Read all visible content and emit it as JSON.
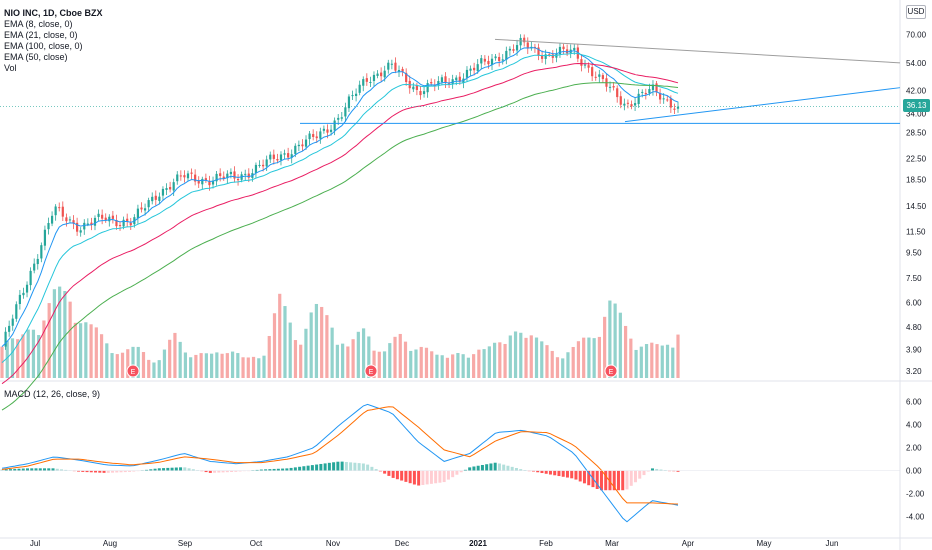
{
  "header": {
    "symbol_line": "NIO INC, 1D, Cboe BZX",
    "currency": "USD"
  },
  "price_pane": {
    "legend": [
      "EMA (8, close, 0)",
      "EMA (21, close, 0)",
      "EMA (100, close, 0)",
      "EMA (50, close)",
      "Vol"
    ],
    "last_price_label": "36.13",
    "y_ticks": [
      "70.00",
      "54.00",
      "42.00",
      "34.00",
      "28.50",
      "22.50",
      "18.50",
      "14.50",
      "11.50",
      "9.50",
      "7.50",
      "6.00",
      "4.80",
      "3.90",
      "3.20"
    ],
    "earnings_marker": "E"
  },
  "macd_pane": {
    "legend": "MACD (12, 26, close, 9)",
    "y_ticks": [
      "6.00",
      "4.00",
      "2.00",
      "0.00",
      "-2.00",
      "-4.00"
    ]
  },
  "x_axis": {
    "labels": [
      "Jul",
      "Aug",
      "Sep",
      "Oct",
      "Nov",
      "Dec",
      "2021",
      "Feb",
      "Mar",
      "Apr",
      "May",
      "Jun"
    ]
  },
  "colors": {
    "up": "#26a69a",
    "down": "#ef5350",
    "ema8": "#2196f3",
    "ema21": "#26c6da",
    "ema100": "#4caf50",
    "ema50": "#e91e63",
    "macd_line": "#2196f3",
    "signal_line": "#ff6d00",
    "trendline": "#2196f3",
    "resistance": "#9e9e9e"
  },
  "chart_data": [
    {
      "type": "candlestick",
      "scale": "log",
      "ylim": [
        3.0,
        80.0
      ],
      "x": [
        "Jul",
        "Aug",
        "Sep",
        "Oct",
        "Nov",
        "Dec",
        "2021",
        "Feb",
        "Mar",
        "Apr",
        "May",
        "Jun"
      ],
      "close_path": [
        [
          "Jun",
          4.0
        ],
        [
          "Jul",
          7.5
        ],
        [
          "Jul",
          14.0
        ],
        [
          "Jul",
          12.0
        ],
        [
          "Aug",
          13.0
        ],
        [
          "Aug",
          12.5
        ],
        [
          "Aug",
          16.5
        ],
        [
          "Sep",
          19.0
        ],
        [
          "Sep",
          18.5
        ],
        [
          "Sep",
          19.0
        ],
        [
          "Oct",
          21.0
        ],
        [
          "Oct",
          24.0
        ],
        [
          "Oct",
          27.0
        ],
        [
          "Nov",
          33.0
        ],
        [
          "Nov",
          47.0
        ],
        [
          "Nov",
          52.0
        ],
        [
          "Dec",
          42.0
        ],
        [
          "Dec",
          45.0
        ],
        [
          "Dec",
          50.0
        ],
        [
          "2021",
          57.0
        ],
        [
          "2021",
          64.0
        ],
        [
          "Feb",
          58.0
        ],
        [
          "Feb",
          60.0
        ],
        [
          "Mar",
          46.0
        ],
        [
          "Mar",
          37.0
        ],
        [
          "Mar",
          42.0
        ],
        [
          "Mar",
          36.13
        ]
      ],
      "last_price": 36.13,
      "horizontal_level": 31.0,
      "series": [
        {
          "name": "EMA (8, close, 0)"
        },
        {
          "name": "EMA (21, close, 0)"
        },
        {
          "name": "EMA (100, close, 0)"
        },
        {
          "name": "EMA (50, close)"
        }
      ],
      "annotations": [
        "E",
        "E",
        "E"
      ]
    },
    {
      "type": "bar",
      "name": "Vol",
      "values": [
        0.55,
        0.4,
        0.7,
        0.95,
        1.0,
        0.6,
        0.45,
        0.3,
        0.35,
        0.2,
        0.5,
        0.3,
        0.25,
        0.4,
        0.2,
        0.3,
        0.9,
        0.5,
        0.8,
        0.7,
        0.35,
        0.6,
        0.3,
        0.5,
        0.4,
        0.25,
        0.35,
        0.2,
        0.5,
        0.35,
        0.7,
        0.4,
        0.3,
        0.35,
        0.5,
        0.9,
        0.6,
        0.4,
        0.35,
        0.6
      ]
    },
    {
      "type": "line",
      "name": "MACD (12, 26, close, 9)",
      "ylim": [
        -5.5,
        7.0
      ],
      "macd": [
        [
          "Jun",
          0.2
        ],
        [
          "Jul",
          0.6
        ],
        [
          "Jul",
          1.2
        ],
        [
          "Jul",
          0.9
        ],
        [
          "Aug",
          0.5
        ],
        [
          "Aug",
          0.4
        ],
        [
          "Aug",
          0.9
        ],
        [
          "Sep",
          1.5
        ],
        [
          "Sep",
          0.8
        ],
        [
          "Sep",
          0.6
        ],
        [
          "Oct",
          0.8
        ],
        [
          "Oct",
          1.2
        ],
        [
          "Oct",
          2.0
        ],
        [
          "Nov",
          4.0
        ],
        [
          "Nov",
          5.8
        ],
        [
          "Nov",
          5.0
        ],
        [
          "Dec",
          2.5
        ],
        [
          "Dec",
          0.8
        ],
        [
          "Dec",
          1.5
        ],
        [
          "2021",
          3.3
        ],
        [
          "2021",
          3.5
        ],
        [
          "Feb",
          3.0
        ],
        [
          "Feb",
          1.5
        ],
        [
          "Mar",
          -1.5
        ],
        [
          "Mar",
          -4.5
        ],
        [
          "Mar",
          -2.6
        ],
        [
          "Mar",
          -3.0
        ]
      ],
      "signal": [
        [
          "Jun",
          0.1
        ],
        [
          "Jul",
          0.4
        ],
        [
          "Jul",
          1.0
        ],
        [
          "Jul",
          1.0
        ],
        [
          "Aug",
          0.7
        ],
        [
          "Aug",
          0.5
        ],
        [
          "Aug",
          0.7
        ],
        [
          "Sep",
          1.2
        ],
        [
          "Sep",
          1.0
        ],
        [
          "Sep",
          0.7
        ],
        [
          "Oct",
          0.7
        ],
        [
          "Oct",
          1.0
        ],
        [
          "Oct",
          1.5
        ],
        [
          "Nov",
          3.2
        ],
        [
          "Nov",
          5.2
        ],
        [
          "Nov",
          5.6
        ],
        [
          "Dec",
          3.8
        ],
        [
          "Dec",
          1.8
        ],
        [
          "Dec",
          1.2
        ],
        [
          "2021",
          2.6
        ],
        [
          "2021",
          3.4
        ],
        [
          "Feb",
          3.3
        ],
        [
          "Feb",
          2.2
        ],
        [
          "Mar",
          0.2
        ],
        [
          "Mar",
          -2.8
        ],
        [
          "Mar",
          -2.8
        ],
        [
          "Mar",
          -2.9
        ]
      ],
      "histogram": [
        0.1,
        0.2,
        0.3,
        0.2,
        -0.1,
        -0.2,
        -0.2,
        0.2,
        0.3,
        -0.2,
        -0.2,
        0.1,
        0.3,
        0.5,
        0.8,
        1.0,
        0.6,
        -0.2,
        -1.2,
        -1.8,
        -0.8,
        0.3,
        0.8,
        1.2,
        0.8,
        -0.2,
        -0.5,
        -1.0,
        -1.6,
        -2.2,
        -2.4,
        -1.6,
        0.2,
        0.4,
        0.3,
        -0.3
      ]
    }
  ]
}
